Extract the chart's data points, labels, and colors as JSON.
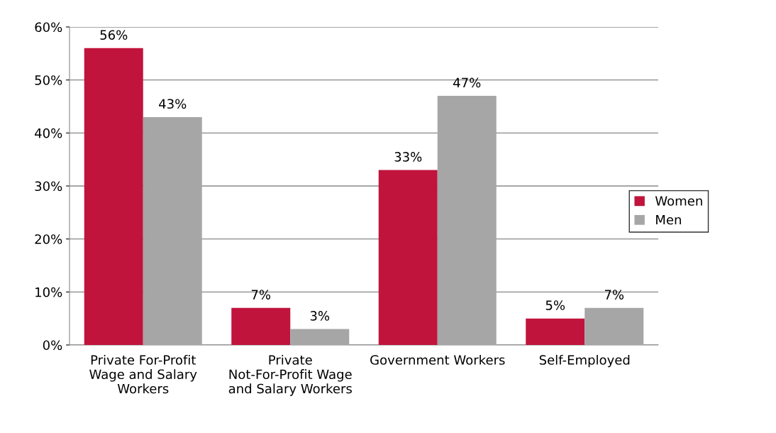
{
  "chart_data": {
    "type": "bar",
    "categories": [
      "Private For-Profit Wage and Salary Workers",
      "Private Not-For-Profit Wage and Salary Workers",
      "Government Workers",
      "Self-Employed"
    ],
    "series": [
      {
        "name": "Women",
        "color": "#c0143c",
        "values": [
          56,
          7,
          33,
          5
        ]
      },
      {
        "name": "Men",
        "color": "#a6a6a6",
        "values": [
          43,
          3,
          47,
          7
        ]
      }
    ],
    "ylim": [
      0,
      60
    ],
    "yticks": [
      {
        "value": 0,
        "label": "0%"
      },
      {
        "value": 10,
        "label": "10%"
      },
      {
        "value": 20,
        "label": "20%"
      },
      {
        "value": 30,
        "label": "30%"
      },
      {
        "value": 40,
        "label": "40%"
      },
      {
        "value": 50,
        "label": "50%"
      },
      {
        "value": 60,
        "label": "60%"
      }
    ],
    "value_labels": [
      [
        "56%",
        "7%",
        "33%",
        "5%"
      ],
      [
        "43%",
        "3%",
        "47%",
        "7%"
      ]
    ],
    "grid": "y",
    "legend": "right"
  }
}
